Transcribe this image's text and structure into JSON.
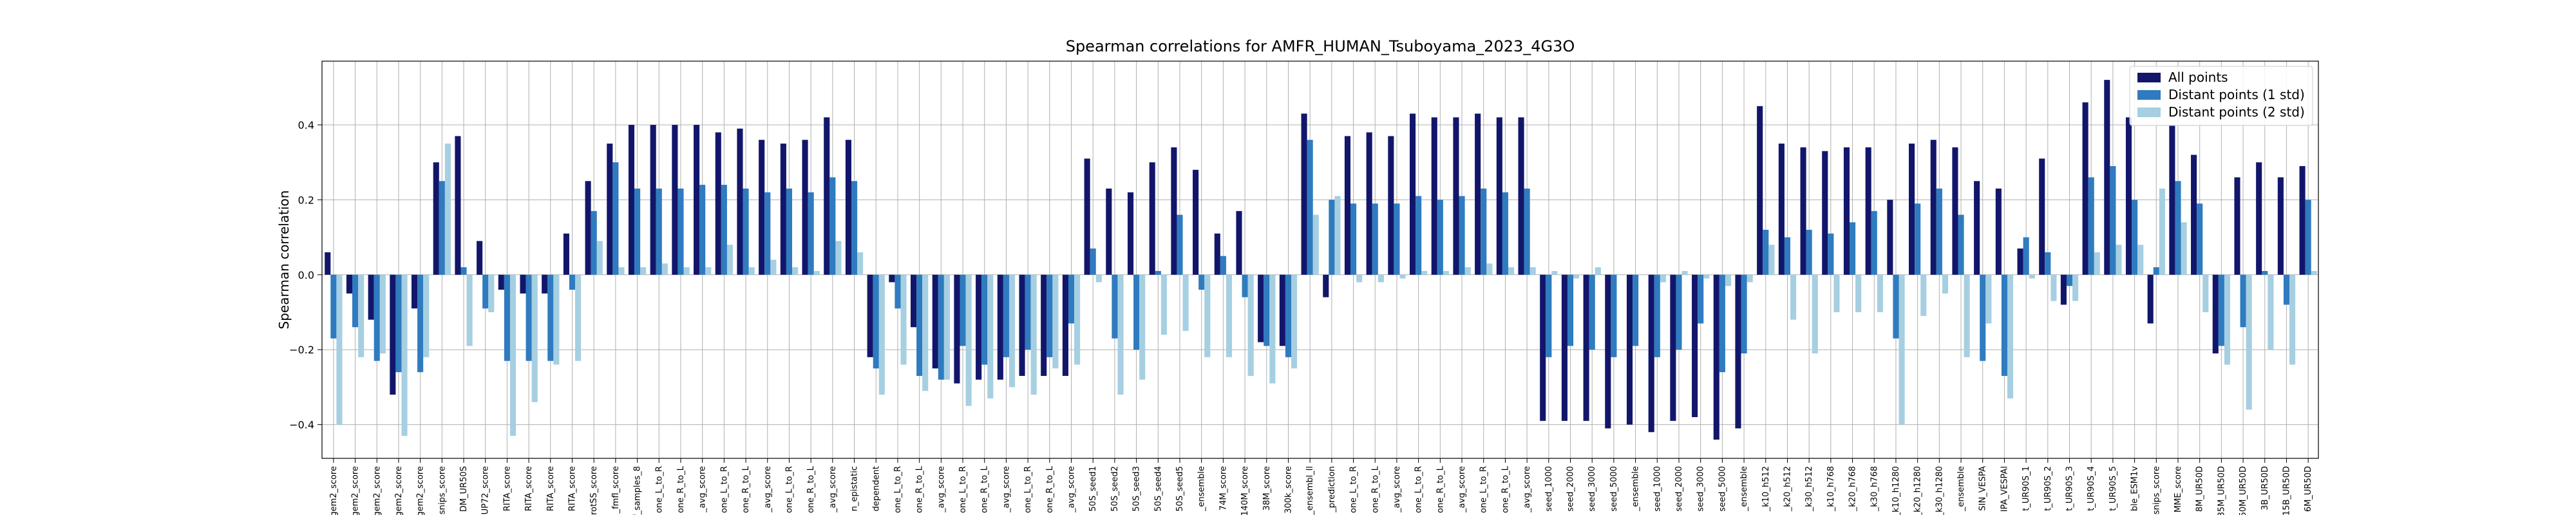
{
  "chart_data": {
    "type": "bar",
    "title": "Spearman correlations for AMFR_HUMAN_Tsuboyama_2023_4G3O",
    "xlabel": "",
    "ylabel": "Spearman correlation",
    "ylim": [
      -0.49,
      0.57
    ],
    "yticks": [
      -0.4,
      -0.2,
      0.0,
      0.2,
      0.4
    ],
    "ytick_labels": [
      "−0.4",
      "−0.2",
      "0.0",
      "0.2",
      "0.4"
    ],
    "grid": true,
    "legend_position": "top-right",
    "colors": [
      "#12166b",
      "#2f7bbf",
      "#a6cfe2"
    ],
    "categories": [
      "gem2_score",
      "gem2_score",
      "gem2_score",
      "gem2_score",
      "gem2_score",
      "ssnips_score",
      "DM_UR50S",
      "UP72_score",
      "RITA_score",
      "RITA_score",
      "RITA_score",
      "RITA_score",
      "ProtSS_score",
      "_fmfl_score",
      "f_samples_8",
      "one_L_to_R",
      "one_R_to_L",
      "_avg_score",
      "one_L_to_R",
      "one_R_to_L",
      "_avg_score",
      "one_L_to_R",
      "one_R_to_L",
      "_avg_score",
      "n_epistatic",
      "dependent",
      "one_L_to_R",
      "one_R_to_L",
      "_avg_score",
      "one_L_to_R",
      "one_R_to_L",
      "_avg_score",
      "one_L_to_R",
      "one_R_to_L",
      "_avg_score",
      "50S_seed1",
      "50S_seed2",
      "50S_seed3",
      "50S_seed4",
      "50S_seed5",
      "_ensemble",
      "74M_score",
      "140M_score",
      "38M_score",
      "300k_score",
      "_ensembl_ll",
      "_prediction",
      "one_L_to_R",
      "one_R_to_L",
      "_avg_score",
      "one_L_to_R",
      "one_R_to_L",
      "_avg_score",
      "one_L_to_R",
      "one_R_to_L",
      "_avg_score",
      "seed_1000",
      "seed_2000",
      "seed_3000",
      "seed_5000",
      "_ensemble",
      "seed_1000",
      "seed_2000",
      "seed_3000",
      "seed_5000",
      "_ensemble",
      "_k10_h512",
      "_k20_h512",
      "_k30_h512",
      "_k10_h768",
      "_k20_h768",
      "_k30_h768",
      "_k10_h1280",
      "_k20_h1280",
      "_k30_h1280",
      "_ensemble",
      "SIN_VESPA",
      "IPA_VESPAl",
      "t_UR90S_1",
      "t_UR90S_2",
      "t_UR90S_3",
      "t_UR90S_4",
      "t_UR90S_5",
      "ble_ESM1v",
      "ssnips_score",
      "MME_score",
      "8M_UR50D",
      "35M_UR50D",
      "150M_UR50D",
      "3B_UR50D",
      "15B_UR50D",
      "6M_UR50D"
    ],
    "series": [
      {
        "name": "All points",
        "values": [
          0.06,
          -0.05,
          -0.12,
          -0.32,
          -0.09,
          0.3,
          0.37,
          0.09,
          -0.04,
          -0.05,
          -0.05,
          0.11,
          0.25,
          0.35,
          0.4,
          0.4,
          0.4,
          0.4,
          0.38,
          0.39,
          0.36,
          0.35,
          0.36,
          0.42,
          0.36,
          -0.22,
          -0.02,
          -0.14,
          -0.25,
          -0.29,
          -0.28,
          -0.28,
          -0.27,
          -0.27,
          -0.27,
          0.31,
          0.23,
          0.22,
          0.3,
          0.34,
          0.28,
          0.11,
          0.17,
          -0.18,
          -0.19,
          0.43,
          -0.06,
          0.37,
          0.38,
          0.37,
          0.43,
          0.42,
          0.42,
          0.43,
          0.42,
          0.42,
          -0.39,
          -0.39,
          -0.39,
          -0.41,
          -0.4,
          -0.42,
          -0.39,
          -0.38,
          -0.44,
          -0.41,
          0.45,
          0.35,
          0.34,
          0.33,
          0.34,
          0.34,
          0.2,
          0.35,
          0.36,
          0.34,
          0.25,
          0.23,
          0.07,
          0.31,
          -0.08,
          0.46,
          0.52,
          0.42,
          -0.13,
          0.4,
          0.32,
          -0.21,
          0.26,
          0.3,
          0.26,
          0.29
        ]
      },
      {
        "name": "Distant points (1 std)",
        "values": [
          -0.17,
          -0.14,
          -0.23,
          -0.26,
          -0.26,
          0.25,
          0.02,
          -0.09,
          -0.23,
          -0.23,
          -0.23,
          -0.04,
          0.17,
          0.3,
          0.23,
          0.23,
          0.23,
          0.24,
          0.24,
          0.23,
          0.22,
          0.23,
          0.22,
          0.26,
          0.25,
          -0.25,
          -0.09,
          -0.27,
          -0.28,
          -0.19,
          -0.24,
          -0.22,
          -0.2,
          -0.22,
          -0.13,
          0.07,
          -0.17,
          -0.2,
          0.01,
          0.16,
          -0.04,
          0.05,
          -0.06,
          -0.19,
          -0.22,
          0.36,
          0.2,
          0.19,
          0.19,
          0.19,
          0.21,
          0.2,
          0.21,
          0.23,
          0.22,
          0.23,
          -0.22,
          -0.19,
          -0.2,
          -0.22,
          -0.19,
          -0.22,
          -0.2,
          -0.13,
          -0.26,
          -0.21,
          0.12,
          0.1,
          0.12,
          0.11,
          0.14,
          0.17,
          -0.17,
          0.19,
          0.23,
          0.16,
          -0.23,
          -0.27,
          0.1,
          0.06,
          -0.03,
          0.26,
          0.29,
          0.2,
          0.02,
          0.25,
          0.19,
          -0.19,
          -0.14,
          0.01,
          -0.08,
          0.2
        ]
      },
      {
        "name": "Distant points (2 std)",
        "values": [
          -0.4,
          -0.22,
          -0.21,
          -0.43,
          -0.22,
          0.35,
          -0.19,
          -0.1,
          -0.43,
          -0.34,
          -0.24,
          -0.23,
          0.09,
          0.02,
          0.02,
          0.03,
          0.02,
          0.02,
          0.08,
          0.02,
          0.04,
          0.02,
          0.01,
          0.09,
          0.06,
          -0.32,
          -0.24,
          -0.31,
          -0.28,
          -0.35,
          -0.33,
          -0.3,
          -0.32,
          -0.25,
          -0.24,
          -0.02,
          -0.32,
          -0.28,
          -0.16,
          -0.15,
          -0.22,
          -0.22,
          -0.27,
          -0.29,
          -0.25,
          0.16,
          0.21,
          -0.02,
          -0.02,
          -0.01,
          0.01,
          0.01,
          0.02,
          0.03,
          0.02,
          0.02,
          0.01,
          -0.01,
          0.02,
          0.0,
          0.0,
          -0.02,
          0.01,
          -0.01,
          -0.03,
          -0.02,
          0.08,
          -0.12,
          -0.21,
          -0.1,
          -0.1,
          -0.1,
          -0.4,
          -0.11,
          -0.05,
          -0.22,
          -0.13,
          -0.33,
          -0.01,
          -0.07,
          -0.07,
          0.06,
          0.08,
          0.08,
          0.23,
          0.14,
          -0.1,
          -0.24,
          -0.36,
          -0.2,
          -0.24,
          0.01
        ]
      }
    ]
  }
}
